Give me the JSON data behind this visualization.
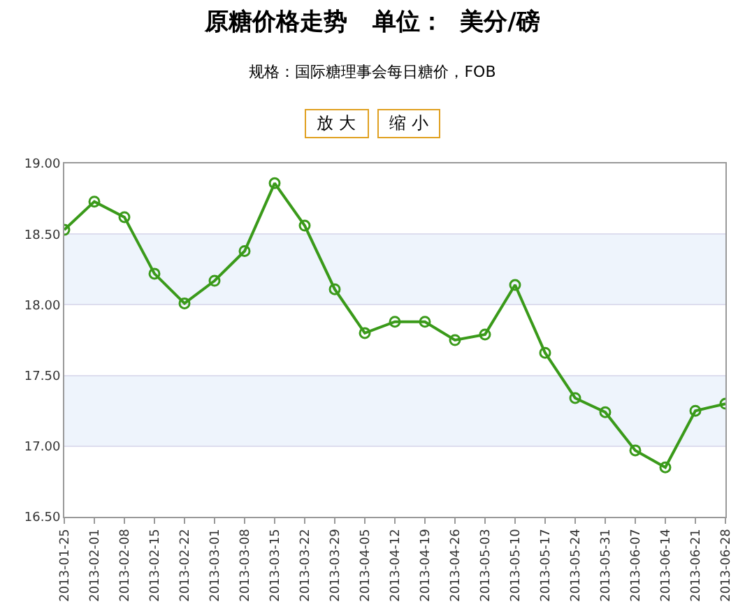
{
  "chart_data": {
    "type": "line",
    "title": "原糖价格走势   单位：  美分/磅",
    "subtitle": "规格：国际糖理事会每日糖价，FOB",
    "annotations": [
      "放 大",
      "缩 小"
    ],
    "categories": [
      "2013-01-25",
      "2013-02-01",
      "2013-02-08",
      "2013-02-15",
      "2013-02-22",
      "2013-03-01",
      "2013-03-08",
      "2013-03-15",
      "2013-03-22",
      "2013-03-29",
      "2013-04-05",
      "2013-04-12",
      "2013-04-19",
      "2013-04-26",
      "2013-05-03",
      "2013-05-10",
      "2013-05-17",
      "2013-05-24",
      "2013-05-31",
      "2013-06-07",
      "2013-06-14",
      "2013-06-21",
      "2013-06-28"
    ],
    "series": [
      {
        "color": "#3a9a1a",
        "values": [
          18.53,
          18.73,
          18.62,
          18.22,
          18.01,
          18.17,
          18.38,
          18.86,
          18.56,
          18.11,
          17.8,
          17.88,
          17.88,
          17.75,
          17.79,
          18.14,
          17.66,
          17.34,
          17.24,
          16.97,
          16.85,
          17.25,
          17.3
        ]
      }
    ],
    "ylim": [
      16.5,
      19
    ],
    "yticks": [
      {
        "value": 16.5,
        "label": "16.50"
      },
      {
        "value": 17,
        "label": "17.00"
      },
      {
        "value": 17.5,
        "label": "17.50"
      },
      {
        "value": 18,
        "label": "18.00"
      },
      {
        "value": 18.5,
        "label": "18.50"
      },
      {
        "value": 19,
        "label": "19.00"
      }
    ],
    "bands": [
      {
        "axis": "y",
        "from": 17,
        "to": 17.5,
        "color": "#eef4fc"
      },
      {
        "axis": "y",
        "from": 18,
        "to": 18.5,
        "color": "#eef4fc"
      }
    ],
    "grid": "y",
    "marker": "circle",
    "line_style": "solid"
  }
}
